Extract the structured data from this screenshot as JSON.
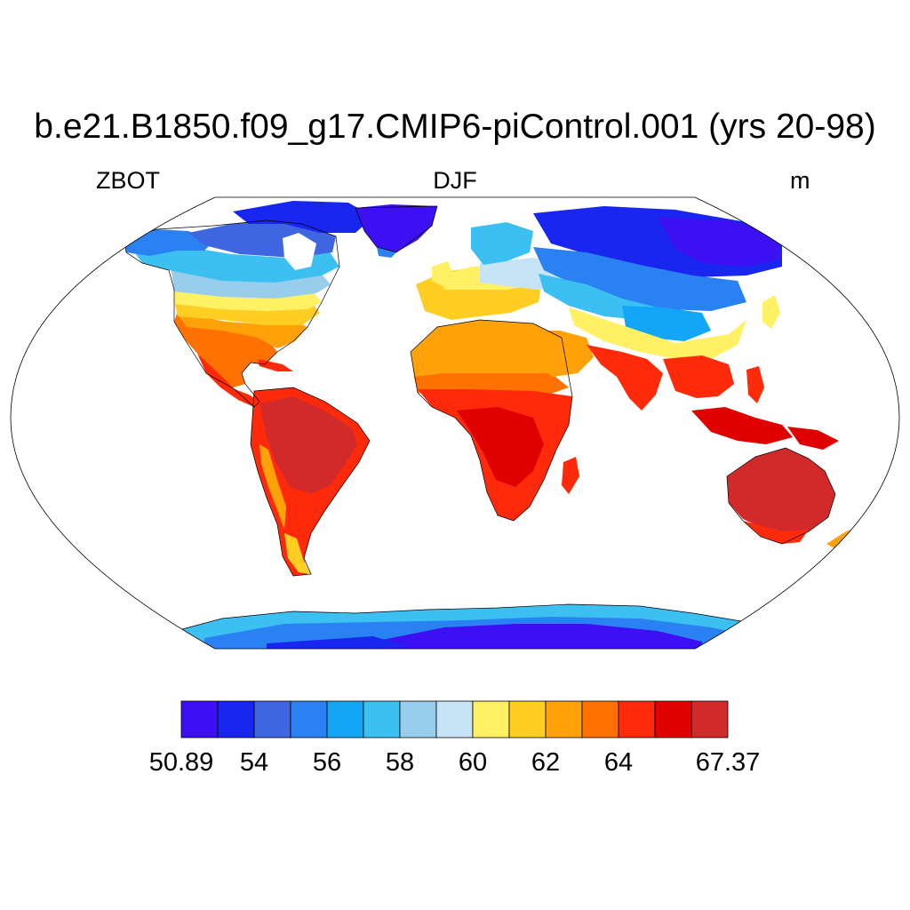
{
  "title": "b.e21.B1850.f09_g17.CMIP6-piControl.001 (yrs 20-98)",
  "left_label": "ZBOT",
  "center_label": "DJF",
  "right_label": "m",
  "colorbar": {
    "colors": [
      "#3d10f4",
      "#1826f0",
      "#3f66e0",
      "#2a82f2",
      "#14a6f6",
      "#3cc0f2",
      "#98cdec",
      "#c6e4f6",
      "#fff064",
      "#ffce22",
      "#ffa20a",
      "#ff7100",
      "#ff2a0a",
      "#e00000",
      "#d22a2a"
    ],
    "tick_labels": [
      "50.89",
      "54",
      "56",
      "58",
      "60",
      "62",
      "64",
      "67.37"
    ],
    "tick_boundary_index": [
      0,
      2,
      4,
      6,
      8,
      10,
      12,
      15
    ]
  },
  "map_data": {
    "projection": "Robinson",
    "variable": "ZBOT",
    "season": "DJF",
    "units": "m",
    "range": [
      50.89,
      67.37
    ]
  }
}
